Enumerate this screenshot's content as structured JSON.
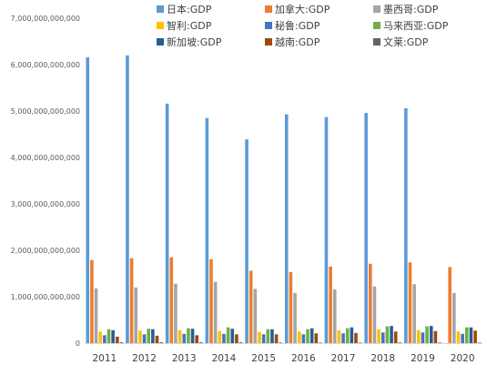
{
  "chart_data": {
    "type": "bar",
    "title": "",
    "xlabel": "",
    "ylabel": "",
    "ylim": [
      0,
      7000000000000
    ],
    "yticks": [
      0,
      1000000000000,
      2000000000000,
      3000000000000,
      4000000000000,
      5000000000000,
      6000000000000,
      7000000000000
    ],
    "ytick_labels": [
      "0",
      "1,000,000,000,000",
      "2,000,000,000,000",
      "3,000,000,000,000",
      "4,000,000,000,000",
      "5,000,000,000,000",
      "6,000,000,000,000",
      "7,000,000,000,000"
    ],
    "grid": false,
    "legend_position": "top",
    "categories": [
      "2011",
      "2012",
      "2013",
      "2014",
      "2015",
      "2016",
      "2017",
      "2018",
      "2019",
      "2020"
    ],
    "series": [
      {
        "name": "日本:GDP",
        "color": "#5B9BD5",
        "values": [
          6160000000000,
          6200000000000,
          5160000000000,
          4850000000000,
          4390000000000,
          4930000000000,
          4870000000000,
          4960000000000,
          5060000000000,
          null
        ]
      },
      {
        "name": "加拿大:GDP",
        "color": "#ED7D31",
        "values": [
          1790000000000,
          1830000000000,
          1850000000000,
          1810000000000,
          1560000000000,
          1530000000000,
          1650000000000,
          1710000000000,
          1740000000000,
          1640000000000
        ]
      },
      {
        "name": "墨西哥:GDP",
        "color": "#A5A5A5",
        "values": [
          1180000000000,
          1200000000000,
          1280000000000,
          1320000000000,
          1170000000000,
          1080000000000,
          1160000000000,
          1220000000000,
          1270000000000,
          1080000000000
        ]
      },
      {
        "name": "智利:GDP",
        "color": "#FFC000",
        "values": [
          250000000000,
          270000000000,
          280000000000,
          260000000000,
          240000000000,
          250000000000,
          280000000000,
          300000000000,
          280000000000,
          250000000000
        ]
      },
      {
        "name": "秘鲁:GDP",
        "color": "#4472C4",
        "values": [
          170000000000,
          190000000000,
          200000000000,
          200000000000,
          190000000000,
          190000000000,
          210000000000,
          230000000000,
          230000000000,
          200000000000
        ]
      },
      {
        "name": "马来西亚:GDP",
        "color": "#70AD47",
        "values": [
          300000000000,
          310000000000,
          320000000000,
          340000000000,
          300000000000,
          300000000000,
          320000000000,
          360000000000,
          360000000000,
          340000000000
        ]
      },
      {
        "name": "新加坡:GDP",
        "color": "#255E91",
        "values": [
          280000000000,
          300000000000,
          310000000000,
          310000000000,
          300000000000,
          320000000000,
          340000000000,
          370000000000,
          370000000000,
          340000000000
        ]
      },
      {
        "name": "越南:GDP",
        "color": "#9E480E",
        "values": [
          140000000000,
          160000000000,
          170000000000,
          190000000000,
          190000000000,
          210000000000,
          220000000000,
          250000000000,
          260000000000,
          270000000000
        ]
      },
      {
        "name": "文莱:GDP",
        "color": "#636363",
        "values": [
          18000000000,
          19000000000,
          18000000000,
          17000000000,
          13000000000,
          11000000000,
          12000000000,
          14000000000,
          13000000000,
          12000000000
        ]
      }
    ]
  }
}
